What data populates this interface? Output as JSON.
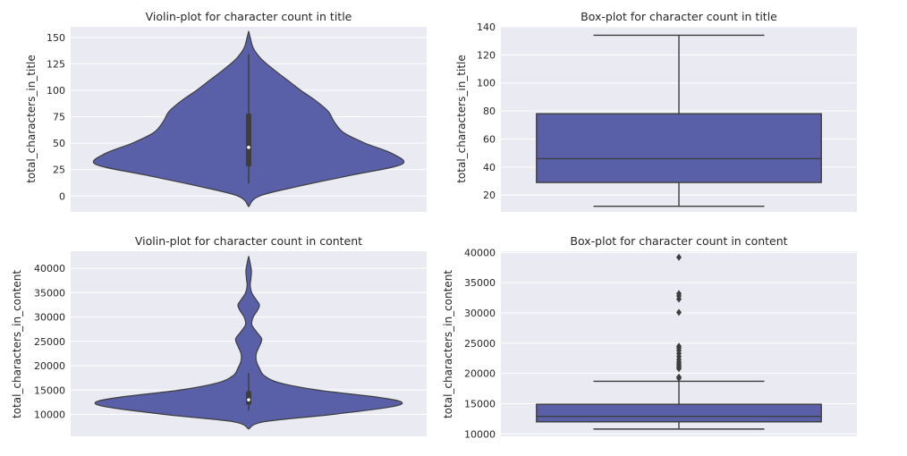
{
  "colors": {
    "background": "#eaeaf2",
    "grid": "#ffffff",
    "fill": "#5a60a8",
    "line": "#3d3d3d"
  },
  "chart_data": [
    {
      "id": "violin-title",
      "type": "violin",
      "title": "Violin-plot for character count in title",
      "xlabel": "",
      "ylabel": "total_characters_in_title",
      "ylim": [
        -15,
        160
      ],
      "yticks": [
        0,
        25,
        50,
        75,
        100,
        125,
        150
      ],
      "yticklabels": [
        "0",
        "25",
        "50",
        "75",
        "100",
        "125",
        "150"
      ],
      "grid": true,
      "density": {
        "y": [
          -10,
          0,
          10,
          20,
          30,
          40,
          50,
          60,
          70,
          80,
          90,
          100,
          110,
          120,
          130,
          140,
          150,
          156
        ],
        "width": [
          0,
          0.07,
          0.35,
          0.68,
          1.0,
          0.94,
          0.76,
          0.62,
          0.56,
          0.52,
          0.44,
          0.34,
          0.25,
          0.16,
          0.08,
          0.03,
          0.01,
          0
        ],
        "max_halfwidth_frac": 0.43
      },
      "box": {
        "whisker_low": 12,
        "q1": 28,
        "median": 46,
        "q3": 78,
        "whisker_high": 134
      }
    },
    {
      "id": "box-title",
      "type": "box",
      "title": "Box-plot for character count in title",
      "xlabel": "",
      "ylabel": "total_characters_in_title",
      "ylim": [
        8,
        140
      ],
      "yticks": [
        20,
        40,
        60,
        80,
        100,
        120,
        140
      ],
      "yticklabels": [
        "20",
        "40",
        "60",
        "80",
        "100",
        "120",
        "140"
      ],
      "grid": true,
      "box": {
        "whisker_low": 12,
        "q1": 29,
        "median": 46,
        "q3": 78,
        "whisker_high": 134
      },
      "outliers": []
    },
    {
      "id": "violin-content",
      "type": "violin",
      "title": "Violin-plot for character count in content",
      "xlabel": "",
      "ylabel": "total_characters_in_content",
      "ylim": [
        5500,
        43500
      ],
      "yticks": [
        10000,
        15000,
        20000,
        25000,
        30000,
        35000,
        40000
      ],
      "yticklabels": [
        "10000",
        "15000",
        "20000",
        "25000",
        "30000",
        "35000",
        "40000"
      ],
      "grid": true,
      "density": {
        "y": [
          7000,
          8500,
          10000,
          11500,
          12500,
          13500,
          15000,
          16500,
          18000,
          19500,
          21000,
          22500,
          24000,
          25500,
          27000,
          28500,
          30000,
          31500,
          32500,
          33500,
          35000,
          36500,
          38000,
          39500,
          41000,
          42500
        ],
        "width": [
          0,
          0.1,
          0.55,
          0.92,
          1.0,
          0.85,
          0.45,
          0.2,
          0.1,
          0.07,
          0.05,
          0.05,
          0.07,
          0.085,
          0.05,
          0.02,
          0.03,
          0.06,
          0.07,
          0.05,
          0.02,
          0.01,
          0.015,
          0.018,
          0.01,
          0
        ],
        "max_halfwidth_frac": 0.43
      },
      "box": {
        "whisker_low": 10800,
        "q1": 12000,
        "median": 13000,
        "q3": 14800,
        "whisker_high": 18500
      }
    },
    {
      "id": "box-content",
      "type": "box",
      "title": "Box-plot for character count in content",
      "xlabel": "",
      "ylabel": "total_characters_in_content",
      "ylim": [
        9600,
        40200
      ],
      "yticks": [
        10000,
        15000,
        20000,
        25000,
        30000,
        35000,
        40000
      ],
      "yticklabels": [
        "10000",
        "15000",
        "20000",
        "25000",
        "30000",
        "35000",
        "40000"
      ],
      "grid": true,
      "box": {
        "whisker_low": 10800,
        "q1": 12000,
        "median": 12900,
        "q3": 14900,
        "whisker_high": 18700
      },
      "outliers": [
        39200,
        33200,
        32800,
        32300,
        30100,
        24500,
        24200,
        23800,
        23300,
        22800,
        22300,
        21900,
        21600,
        21300,
        21000,
        20800,
        19400,
        19200
      ]
    }
  ]
}
